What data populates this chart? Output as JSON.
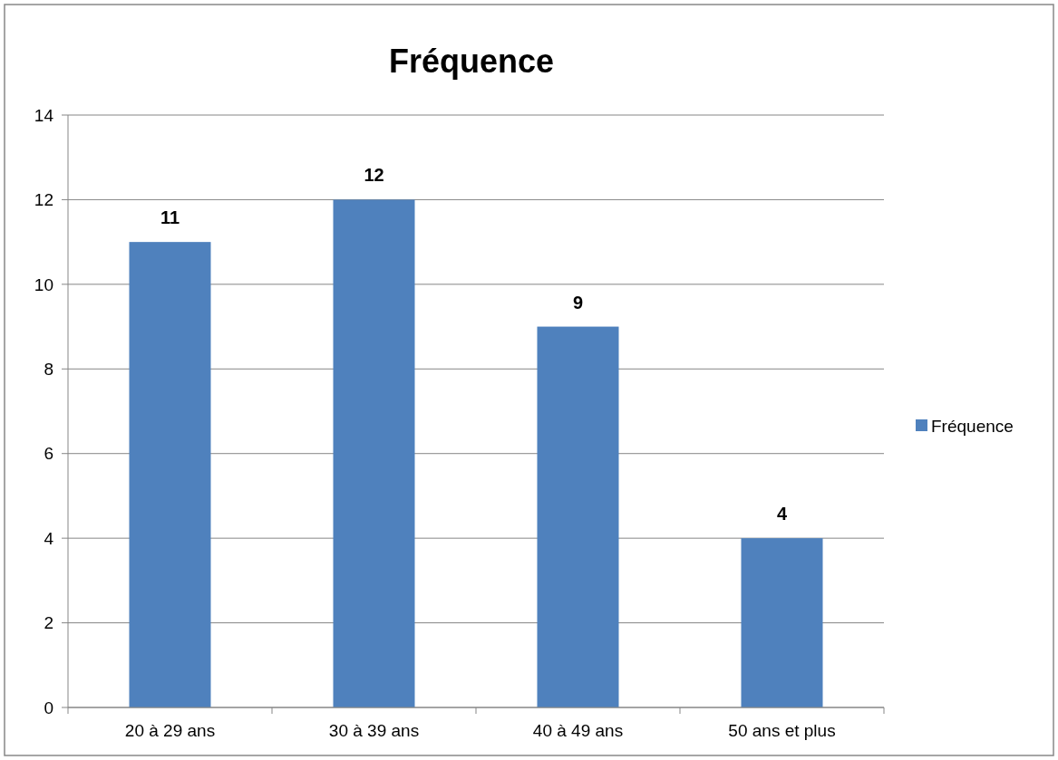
{
  "chart_data": {
    "type": "bar",
    "title": "Fréquence",
    "categories": [
      "20 à 29 ans",
      "30 à 39 ans",
      "40 à 49 ans",
      "50 ans et plus"
    ],
    "series": [
      {
        "name": "Fréquence",
        "color": "#4f81bd",
        "values": [
          11,
          12,
          9,
          4
        ]
      }
    ],
    "ylim": [
      0,
      14
    ],
    "yticks": [
      0,
      2,
      4,
      6,
      8,
      10,
      12,
      14
    ],
    "grid": "y",
    "legend": "right",
    "data_labels": true
  }
}
